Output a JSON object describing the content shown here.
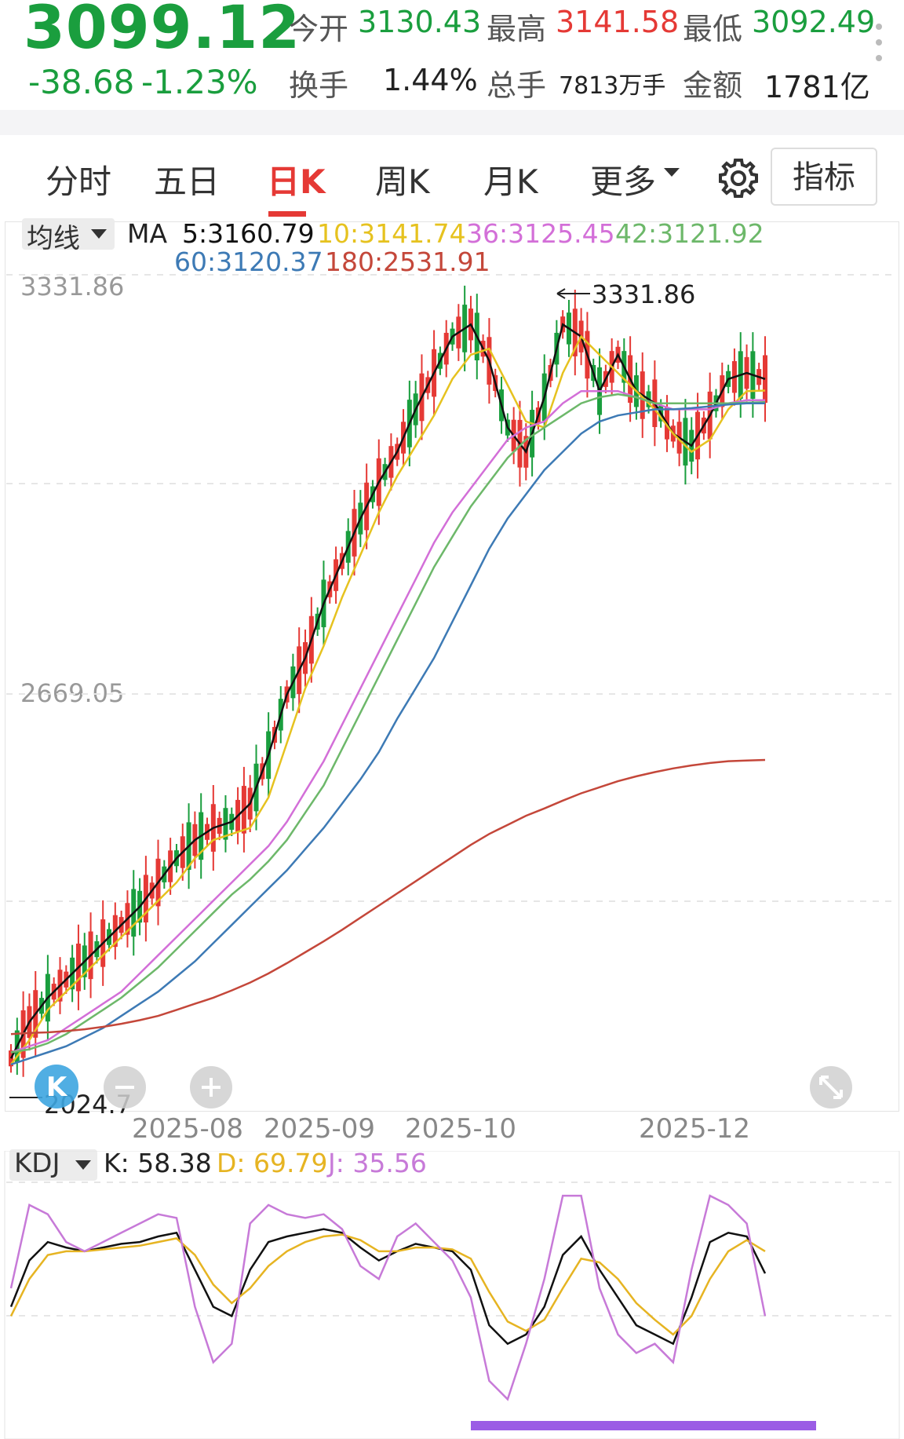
{
  "quote": {
    "price": "3099.12",
    "change": "-38.68",
    "change_pct": "-1.23%",
    "open_label": "今开",
    "open": "3130.43",
    "high_label": "最高",
    "high": "3141.58",
    "low_label": "最低",
    "low": "3092.49",
    "turnover_label": "换手",
    "turnover": "1.44%",
    "volume_label": "总手",
    "volume": "7813万手",
    "amount_label": "金额",
    "amount": "1781亿"
  },
  "tabs": [
    {
      "label": "分时"
    },
    {
      "label": "五日"
    },
    {
      "label": "日K",
      "active": true
    },
    {
      "label": "周K"
    },
    {
      "label": "月K"
    },
    {
      "label": "更多"
    }
  ],
  "indicator_button": "指标",
  "icons": {
    "settings": "gear-icon",
    "dropdown": "caret-down-icon",
    "zoom_out": "minus-icon",
    "zoom_in": "plus-icon",
    "expand": "expand-icon",
    "logo": "k-logo-icon",
    "more": "more-vertical-icon"
  },
  "colors": {
    "up": "#e53935",
    "down": "#1a9e3e",
    "ma5": "#111111",
    "ma10": "#e6c21f",
    "ma36": "#d36fd8",
    "ma42": "#6db86a",
    "ma60": "#3d7ab5",
    "ma180": "#c4473a",
    "k": "#111111",
    "d": "#e6b422",
    "j": "#c77ad8"
  },
  "ma_legend": {
    "select_label": "均线",
    "prefix": "MA",
    "items": [
      {
        "text": "5:3160.79",
        "color": "#111111"
      },
      {
        "text": "10:3141.74",
        "color": "#e6c21f"
      },
      {
        "text": "36:3125.45",
        "color": "#d36fd8"
      },
      {
        "text": "42:3121.92",
        "color": "#6db86a"
      },
      {
        "text": "60:3120.37",
        "color": "#3d7ab5"
      },
      {
        "text": "180:2531.91",
        "color": "#c4473a"
      }
    ]
  },
  "kdj_legend": {
    "select_label": "KDJ",
    "k": "K: 58.38",
    "d": "D: 69.79",
    "j": "J: 35.56"
  },
  "chart_data": [
    {
      "type": "candlestick",
      "y_axis_labels": [
        "3331.86",
        "2669.05"
      ],
      "high_marker": "3331.86",
      "low_marker": "2024.7",
      "ylim": [
        2024.7,
        3331.86
      ],
      "x_tick_labels": [
        "2025-08",
        "2025-09",
        "2025-10",
        "2025-12"
      ],
      "grid": true,
      "series": [
        {
          "name": "MA5",
          "values": [
            2040,
            2100,
            2140,
            2170,
            2200,
            2230,
            2260,
            2290,
            2330,
            2370,
            2400,
            2420,
            2430,
            2460,
            2540,
            2640,
            2700,
            2790,
            2860,
            2930,
            2990,
            3040,
            3110,
            3170,
            3230,
            3250,
            3190,
            3080,
            3040,
            3130,
            3250,
            3230,
            3140,
            3200,
            3140,
            3120,
            3070,
            3050,
            3100,
            3160,
            3170,
            3160
          ]
        },
        {
          "name": "MA10",
          "values": [
            2030,
            2070,
            2120,
            2150,
            2180,
            2210,
            2240,
            2270,
            2300,
            2330,
            2370,
            2400,
            2410,
            2420,
            2470,
            2560,
            2650,
            2720,
            2800,
            2870,
            2940,
            3000,
            3050,
            3100,
            3160,
            3200,
            3210,
            3150,
            3090,
            3080,
            3170,
            3230,
            3200,
            3170,
            3140,
            3110,
            3070,
            3040,
            3060,
            3110,
            3140,
            3141
          ]
        },
        {
          "name": "MA36",
          "values": [
            2050,
            2060,
            2070,
            2090,
            2110,
            2130,
            2150,
            2180,
            2210,
            2240,
            2270,
            2300,
            2330,
            2360,
            2390,
            2430,
            2480,
            2530,
            2590,
            2650,
            2710,
            2770,
            2830,
            2890,
            2940,
            2980,
            3020,
            3060,
            3080,
            3090,
            3120,
            3140,
            3140,
            3140,
            3130,
            3120,
            3110,
            3110,
            3110,
            3120,
            3125,
            3125
          ]
        },
        {
          "name": "MA42",
          "values": [
            2050,
            2055,
            2065,
            2080,
            2100,
            2120,
            2140,
            2165,
            2190,
            2220,
            2250,
            2280,
            2310,
            2335,
            2365,
            2400,
            2445,
            2490,
            2550,
            2610,
            2670,
            2730,
            2790,
            2850,
            2900,
            2950,
            2990,
            3030,
            3060,
            3080,
            3100,
            3120,
            3130,
            3135,
            3130,
            3120,
            3120,
            3120,
            3120,
            3120,
            3121,
            3122
          ]
        },
        {
          "name": "MA60",
          "values": [
            2030,
            2040,
            2050,
            2060,
            2075,
            2090,
            2110,
            2130,
            2150,
            2175,
            2200,
            2230,
            2260,
            2290,
            2320,
            2350,
            2385,
            2420,
            2460,
            2500,
            2545,
            2600,
            2650,
            2700,
            2760,
            2820,
            2880,
            2930,
            2970,
            3010,
            3040,
            3070,
            3090,
            3100,
            3105,
            3110,
            3110,
            3112,
            3115,
            3118,
            3120,
            3120
          ]
        },
        {
          "name": "MA180",
          "values": [
            2080,
            2082,
            2083,
            2085,
            2088,
            2092,
            2097,
            2103,
            2110,
            2120,
            2130,
            2140,
            2152,
            2165,
            2180,
            2197,
            2215,
            2233,
            2252,
            2272,
            2292,
            2312,
            2332,
            2352,
            2372,
            2392,
            2410,
            2425,
            2440,
            2452,
            2465,
            2477,
            2487,
            2497,
            2505,
            2512,
            2518,
            2523,
            2527,
            2530,
            2531,
            2532
          ]
        }
      ]
    },
    {
      "type": "line",
      "title": "KDJ",
      "ylim": [
        -20,
        120
      ],
      "series": [
        {
          "name": "K",
          "values": [
            40,
            65,
            75,
            72,
            70,
            72,
            74,
            75,
            78,
            80,
            60,
            40,
            35,
            60,
            75,
            78,
            80,
            82,
            80,
            72,
            65,
            70,
            74,
            72,
            70,
            60,
            30,
            20,
            25,
            40,
            68,
            78,
            60,
            45,
            30,
            25,
            20,
            45,
            75,
            80,
            78,
            58
          ]
        },
        {
          "name": "D",
          "values": [
            35,
            55,
            68,
            70,
            70,
            71,
            72,
            73,
            75,
            77,
            68,
            52,
            42,
            50,
            62,
            70,
            75,
            78,
            79,
            76,
            70,
            70,
            72,
            72,
            71,
            66,
            48,
            32,
            27,
            33,
            50,
            66,
            64,
            55,
            42,
            33,
            25,
            35,
            55,
            70,
            76,
            70
          ]
        },
        {
          "name": "J",
          "values": [
            50,
            95,
            90,
            75,
            70,
            75,
            80,
            85,
            90,
            88,
            40,
            10,
            20,
            85,
            95,
            90,
            88,
            90,
            82,
            62,
            55,
            78,
            85,
            75,
            65,
            45,
            0,
            -10,
            20,
            55,
            100,
            100,
            50,
            25,
            15,
            20,
            10,
            60,
            100,
            95,
            85,
            35
          ]
        }
      ]
    }
  ]
}
